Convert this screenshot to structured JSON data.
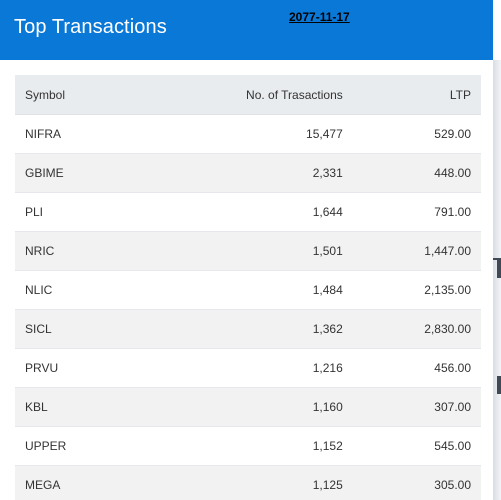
{
  "header": {
    "title": "Top Transactions",
    "date": "2077-11-17"
  },
  "table": {
    "columns": {
      "symbol": "Symbol",
      "transactions": "No. of Trasactions",
      "ltp": "LTP"
    },
    "rows": [
      {
        "symbol": "NIFRA",
        "transactions": "15,477",
        "ltp": "529.00"
      },
      {
        "symbol": "GBIME",
        "transactions": "2,331",
        "ltp": "448.00"
      },
      {
        "symbol": "PLI",
        "transactions": "1,644",
        "ltp": "791.00"
      },
      {
        "symbol": "NRIC",
        "transactions": "1,501",
        "ltp": "1,447.00"
      },
      {
        "symbol": "NLIC",
        "transactions": "1,484",
        "ltp": "2,135.00"
      },
      {
        "symbol": "SICL",
        "transactions": "1,362",
        "ltp": "2,830.00"
      },
      {
        "symbol": "PRVU",
        "transactions": "1,216",
        "ltp": "456.00"
      },
      {
        "symbol": "KBL",
        "transactions": "1,160",
        "ltp": "307.00"
      },
      {
        "symbol": "UPPER",
        "transactions": "1,152",
        "ltp": "545.00"
      },
      {
        "symbol": "MEGA",
        "transactions": "1,125",
        "ltp": "305.00"
      }
    ]
  },
  "colors": {
    "header_bg": "#0a78d6",
    "table_header_bg": "#e9ecef",
    "stripe_bg": "#f2f2f2"
  }
}
